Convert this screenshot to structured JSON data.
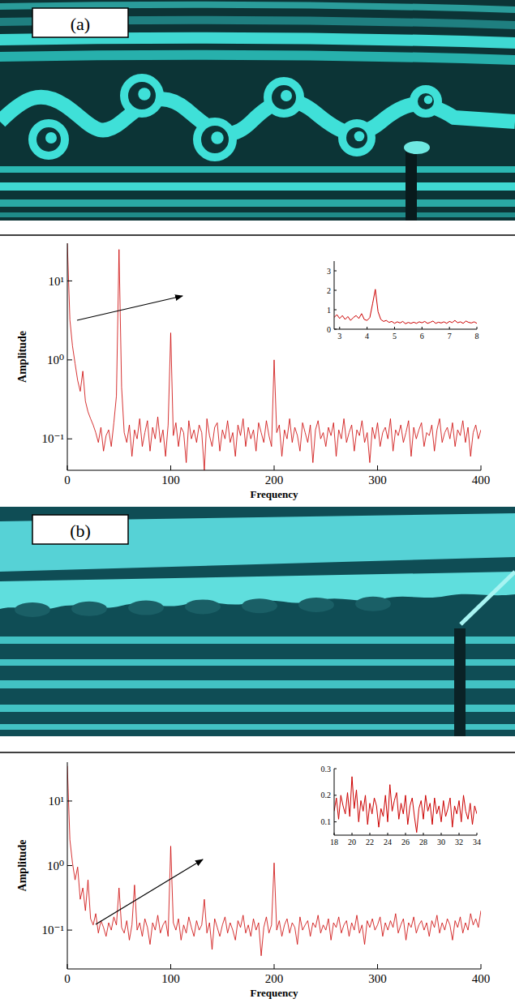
{
  "photos": [
    {
      "label": "(a)"
    },
    {
      "label": "(b)"
    }
  ],
  "chart_data": [
    {
      "type": "line",
      "log": "y",
      "x_label": "Frequency",
      "y_label": "Amplitude",
      "xlim": [
        0,
        400
      ],
      "xticks": [
        0,
        100,
        200,
        300,
        400
      ],
      "ylim": [
        0.04,
        30
      ],
      "yticks": [
        {
          "value": 0.1,
          "label": "10⁻¹"
        },
        {
          "value": 1,
          "label": "10⁰"
        },
        {
          "value": 10,
          "label": "10¹"
        }
      ],
      "x": [
        0,
        2.5,
        5,
        7.5,
        10,
        12.5,
        15,
        17.5,
        20,
        22.5,
        25,
        27.5,
        30,
        32.5,
        35,
        37.5,
        40,
        42.5,
        45,
        47.5,
        50,
        52.5,
        55,
        57.5,
        60,
        62.5,
        65,
        67.5,
        70,
        72.5,
        75,
        77.5,
        80,
        82.5,
        85,
        87.5,
        90,
        92.5,
        95,
        97.5,
        100,
        102.5,
        105,
        107.5,
        110,
        112.5,
        115,
        117.5,
        120,
        122.5,
        125,
        127.5,
        130,
        132.5,
        135,
        137.5,
        140,
        142.5,
        145,
        147.5,
        150,
        152.5,
        155,
        157.5,
        160,
        162.5,
        165,
        167.5,
        170,
        172.5,
        175,
        177.5,
        180,
        182.5,
        185,
        187.5,
        190,
        192.5,
        195,
        197.5,
        200,
        202.5,
        205,
        207.5,
        210,
        212.5,
        215,
        217.5,
        220,
        222.5,
        225,
        227.5,
        230,
        232.5,
        235,
        237.5,
        240,
        242.5,
        245,
        247.5,
        250,
        252.5,
        255,
        257.5,
        260,
        262.5,
        265,
        267.5,
        270,
        272.5,
        275,
        277.5,
        280,
        282.5,
        285,
        287.5,
        290,
        292.5,
        295,
        297.5,
        300,
        302.5,
        305,
        307.5,
        310,
        312.5,
        315,
        317.5,
        320,
        322.5,
        325,
        327.5,
        330,
        332.5,
        335,
        337.5,
        340,
        342.5,
        345,
        347.5,
        350,
        352.5,
        355,
        357.5,
        360,
        362.5,
        365,
        367.5,
        370,
        372.5,
        375,
        377.5,
        380,
        382.5,
        385,
        387.5,
        390,
        392.5,
        395,
        397.5,
        400
      ],
      "series": [
        {
          "color": "#cc0000",
          "values": [
            30,
            3.2,
            1.5,
            0.9,
            0.55,
            0.4,
            0.72,
            0.3,
            0.22,
            0.18,
            0.15,
            0.12,
            0.09,
            0.14,
            0.07,
            0.11,
            0.13,
            0.08,
            0.16,
            0.35,
            25,
            0.45,
            0.12,
            0.09,
            0.15,
            0.06,
            0.13,
            0.1,
            0.18,
            0.08,
            0.12,
            0.17,
            0.07,
            0.14,
            0.1,
            0.19,
            0.09,
            0.13,
            0.06,
            0.15,
            2.2,
            0.11,
            0.16,
            0.08,
            0.14,
            0.12,
            0.05,
            0.17,
            0.1,
            0.13,
            0.09,
            0.15,
            0.12,
            0.04,
            0.18,
            0.11,
            0.08,
            0.14,
            0.16,
            0.07,
            0.13,
            0.1,
            0.17,
            0.09,
            0.12,
            0.06,
            0.15,
            0.11,
            0.18,
            0.08,
            0.14,
            0.1,
            0.13,
            0.07,
            0.16,
            0.12,
            0.09,
            0.17,
            0.11,
            0.08,
            1.0,
            0.12,
            0.15,
            0.06,
            0.13,
            0.1,
            0.18,
            0.09,
            0.14,
            0.11,
            0.07,
            0.16,
            0.12,
            0.09,
            0.15,
            0.05,
            0.13,
            0.17,
            0.1,
            0.12,
            0.08,
            0.14,
            0.11,
            0.16,
            0.06,
            0.13,
            0.1,
            0.18,
            0.09,
            0.12,
            0.15,
            0.07,
            0.13,
            0.11,
            0.17,
            0.09,
            0.12,
            0.05,
            0.14,
            0.1,
            0.16,
            0.08,
            0.12,
            0.14,
            0.1,
            0.18,
            0.07,
            0.13,
            0.11,
            0.15,
            0.09,
            0.12,
            0.17,
            0.06,
            0.14,
            0.1,
            0.13,
            0.16,
            0.08,
            0.12,
            0.11,
            0.15,
            0.07,
            0.13,
            0.18,
            0.09,
            0.12,
            0.14,
            0.1,
            0.16,
            0.08,
            0.13,
            0.11,
            0.17,
            0.09,
            0.14,
            0.06,
            0.12,
            0.15,
            0.1,
            0.13
          ]
        }
      ]
    },
    {
      "type": "line",
      "xlim": [
        2.8,
        8
      ],
      "xticks": [
        3,
        4,
        5,
        6,
        7,
        8
      ],
      "ylim": [
        0,
        3.5
      ],
      "yticks": [
        0,
        1,
        2,
        3
      ],
      "x": [
        2.8,
        2.9,
        3,
        3.1,
        3.2,
        3.3,
        3.4,
        3.5,
        3.6,
        3.7,
        3.8,
        3.9,
        4,
        4.1,
        4.2,
        4.3,
        4.4,
        4.5,
        4.6,
        4.7,
        4.8,
        4.9,
        5,
        5.1,
        5.2,
        5.3,
        5.4,
        5.5,
        5.6,
        5.7,
        5.8,
        5.9,
        6,
        6.1,
        6.2,
        6.3,
        6.4,
        6.5,
        6.6,
        6.7,
        6.8,
        6.9,
        7,
        7.1,
        7.2,
        7.3,
        7.4,
        7.5,
        7.6,
        7.7,
        7.8,
        7.9,
        8
      ],
      "series": [
        {
          "color": "#cc0000",
          "values": [
            0.6,
            0.75,
            0.55,
            0.7,
            0.5,
            0.65,
            0.45,
            0.6,
            0.7,
            0.55,
            0.8,
            0.5,
            0.45,
            0.6,
            1.3,
            2.05,
            0.9,
            0.5,
            0.4,
            0.45,
            0.35,
            0.4,
            0.3,
            0.38,
            0.32,
            0.4,
            0.28,
            0.35,
            0.3,
            0.36,
            0.3,
            0.38,
            0.33,
            0.4,
            0.3,
            0.35,
            0.42,
            0.3,
            0.36,
            0.32,
            0.38,
            0.3,
            0.4,
            0.34,
            0.45,
            0.33,
            0.38,
            0.3,
            0.42,
            0.35,
            0.32,
            0.38,
            0.3
          ]
        }
      ]
    },
    {
      "type": "line",
      "log": "y",
      "x_label": "Frequency",
      "y_label": "Amplitude",
      "xlim": [
        0,
        400
      ],
      "xticks": [
        0,
        100,
        200,
        300,
        400
      ],
      "ylim": [
        0.025,
        40
      ],
      "yticks": [
        {
          "value": 0.1,
          "label": "10⁻¹"
        },
        {
          "value": 1,
          "label": "10⁰"
        },
        {
          "value": 10,
          "label": "10¹"
        }
      ],
      "x": [
        0,
        2.5,
        5,
        7.5,
        10,
        12.5,
        15,
        17.5,
        20,
        22.5,
        25,
        27.5,
        30,
        32.5,
        35,
        37.5,
        40,
        42.5,
        45,
        47.5,
        50,
        52.5,
        55,
        57.5,
        60,
        62.5,
        65,
        67.5,
        70,
        72.5,
        75,
        77.5,
        80,
        82.5,
        85,
        87.5,
        90,
        92.5,
        95,
        97.5,
        100,
        102.5,
        105,
        107.5,
        110,
        112.5,
        115,
        117.5,
        120,
        122.5,
        125,
        127.5,
        130,
        132.5,
        135,
        137.5,
        140,
        142.5,
        145,
        147.5,
        150,
        152.5,
        155,
        157.5,
        160,
        162.5,
        165,
        167.5,
        170,
        172.5,
        175,
        177.5,
        180,
        182.5,
        185,
        187.5,
        190,
        192.5,
        195,
        197.5,
        200,
        202.5,
        205,
        207.5,
        210,
        212.5,
        215,
        217.5,
        220,
        222.5,
        225,
        227.5,
        230,
        232.5,
        235,
        237.5,
        240,
        242.5,
        245,
        247.5,
        250,
        252.5,
        255,
        257.5,
        260,
        262.5,
        265,
        267.5,
        270,
        272.5,
        275,
        277.5,
        280,
        282.5,
        285,
        287.5,
        290,
        292.5,
        295,
        297.5,
        300,
        302.5,
        305,
        307.5,
        310,
        312.5,
        315,
        317.5,
        320,
        322.5,
        325,
        327.5,
        330,
        332.5,
        335,
        337.5,
        340,
        342.5,
        345,
        347.5,
        350,
        352.5,
        355,
        357.5,
        360,
        362.5,
        365,
        367.5,
        370,
        372.5,
        375,
        377.5,
        380,
        382.5,
        385,
        387.5,
        390,
        392.5,
        395,
        397.5,
        400
      ],
      "series": [
        {
          "color": "#cc0000",
          "values": [
            35,
            2.5,
            1.1,
            0.6,
            0.95,
            0.3,
            0.45,
            0.2,
            0.6,
            0.15,
            0.12,
            0.18,
            0.09,
            0.14,
            0.11,
            0.08,
            0.13,
            0.1,
            0.16,
            0.12,
            0.45,
            0.11,
            0.09,
            0.14,
            0.07,
            0.12,
            0.5,
            0.1,
            0.13,
            0.08,
            0.15,
            0.11,
            0.06,
            0.13,
            0.1,
            0.17,
            0.09,
            0.12,
            0.14,
            0.08,
            2.0,
            0.13,
            0.1,
            0.15,
            0.07,
            0.12,
            0.09,
            0.16,
            0.11,
            0.08,
            0.14,
            0.1,
            0.12,
            0.3,
            0.09,
            0.13,
            0.05,
            0.15,
            0.11,
            0.08,
            0.12,
            0.16,
            0.09,
            0.13,
            0.1,
            0.07,
            0.14,
            0.11,
            0.17,
            0.09,
            0.12,
            0.08,
            0.15,
            0.1,
            0.13,
            0.04,
            0.11,
            0.16,
            0.09,
            0.12,
            1.1,
            0.1,
            0.14,
            0.08,
            0.12,
            0.15,
            0.09,
            0.13,
            0.11,
            0.06,
            0.16,
            0.1,
            0.12,
            0.14,
            0.08,
            0.13,
            0.11,
            0.17,
            0.09,
            0.12,
            0.1,
            0.15,
            0.07,
            0.13,
            0.11,
            0.16,
            0.09,
            0.12,
            0.14,
            0.08,
            0.13,
            0.1,
            0.17,
            0.09,
            0.12,
            0.06,
            0.14,
            0.11,
            0.15,
            0.1,
            0.12,
            0.16,
            0.08,
            0.13,
            0.1,
            0.14,
            0.11,
            0.18,
            0.09,
            0.12,
            0.15,
            0.07,
            0.13,
            0.11,
            0.16,
            0.09,
            0.12,
            0.14,
            0.1,
            0.13,
            0.08,
            0.14,
            0.11,
            0.17,
            0.09,
            0.13,
            0.1,
            0.15,
            0.12,
            0.07,
            0.14,
            0.11,
            0.16,
            0.09,
            0.13,
            0.1,
            0.18,
            0.12,
            0.15,
            0.11,
            0.2
          ]
        }
      ]
    },
    {
      "type": "line",
      "xlim": [
        18,
        34
      ],
      "xticks": [
        18,
        20,
        22,
        24,
        26,
        28,
        30,
        32,
        34
      ],
      "ylim": [
        0.05,
        0.3
      ],
      "yticks": [
        0.1,
        0.2,
        0.3
      ],
      "x": [
        18,
        18.25,
        18.5,
        18.75,
        19,
        19.25,
        19.5,
        19.75,
        20,
        20.25,
        20.5,
        20.75,
        21,
        21.25,
        21.5,
        21.75,
        22,
        22.25,
        22.5,
        22.75,
        23,
        23.25,
        23.5,
        23.75,
        24,
        24.25,
        24.5,
        24.75,
        25,
        25.25,
        25.5,
        25.75,
        26,
        26.25,
        26.5,
        26.75,
        27,
        27.25,
        27.5,
        27.75,
        28,
        28.25,
        28.5,
        28.75,
        29,
        29.25,
        29.5,
        29.75,
        30,
        30.25,
        30.5,
        30.75,
        31,
        31.25,
        31.5,
        31.75,
        32,
        32.25,
        32.5,
        32.75,
        33,
        33.25,
        33.5,
        33.75,
        34
      ],
      "series": [
        {
          "color": "#cc0000",
          "values": [
            0.14,
            0.19,
            0.11,
            0.2,
            0.16,
            0.13,
            0.21,
            0.12,
            0.27,
            0.15,
            0.22,
            0.1,
            0.18,
            0.14,
            0.2,
            0.09,
            0.17,
            0.13,
            0.19,
            0.16,
            0.08,
            0.15,
            0.12,
            0.2,
            0.1,
            0.24,
            0.14,
            0.18,
            0.21,
            0.11,
            0.17,
            0.13,
            0.2,
            0.09,
            0.16,
            0.19,
            0.12,
            0.06,
            0.15,
            0.18,
            0.11,
            0.2,
            0.14,
            0.17,
            0.09,
            0.19,
            0.13,
            0.16,
            0.1,
            0.18,
            0.12,
            0.15,
            0.19,
            0.08,
            0.16,
            0.13,
            0.18,
            0.1,
            0.2,
            0.14,
            0.11,
            0.17,
            0.09,
            0.16,
            0.13
          ]
        }
      ]
    }
  ]
}
